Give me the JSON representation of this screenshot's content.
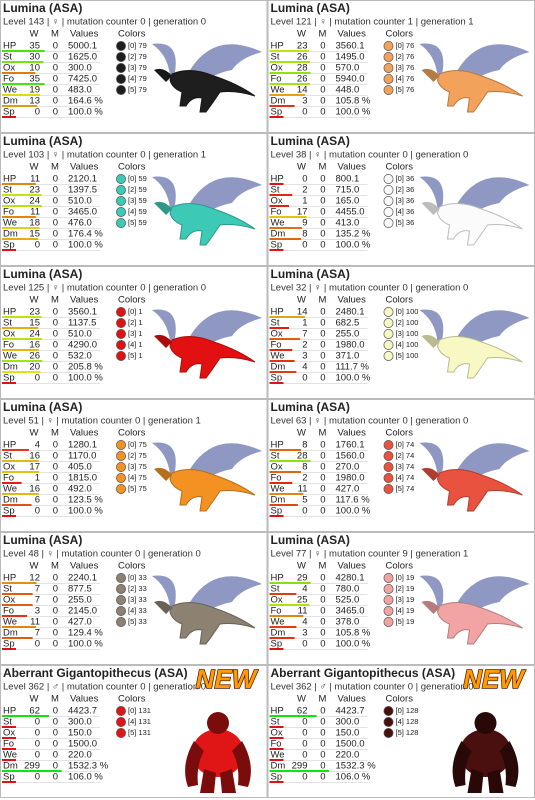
{
  "headers": {
    "w": "W",
    "m": "M",
    "values": "Values",
    "colors": "Colors"
  },
  "cards": [
    {
      "name": "Lumina (ASA)",
      "info": "Level 143 | ♀ | mutation counter 0 | generation 0",
      "stats": [
        {
          "label": "HP",
          "w": 35,
          "m": 0,
          "value": "5000.1"
        },
        {
          "label": "St",
          "w": 30,
          "m": 0,
          "value": "1625.0"
        },
        {
          "label": "Ox",
          "w": 10,
          "m": 0,
          "value": "300.0"
        },
        {
          "label": "Fo",
          "w": 35,
          "m": 0,
          "value": "7425.0"
        },
        {
          "label": "We",
          "w": 19,
          "m": 0,
          "value": "483.0"
        },
        {
          "label": "Dm",
          "w": 13,
          "m": 0,
          "value": "164.6 %"
        },
        {
          "label": "Sp",
          "w": 0,
          "m": 0,
          "value": "100.0 %"
        }
      ],
      "colors": [
        {
          "label": "[0] 79",
          "color": "#1e1e1e"
        },
        {
          "label": "[2] 79",
          "color": "#1e1e1e"
        },
        {
          "label": "[3] 79",
          "color": "#1e1e1e"
        },
        {
          "label": "[4] 79",
          "color": "#1e1e1e"
        },
        {
          "label": "[5] 79",
          "color": "#1e1e1e"
        }
      ]
    },
    {
      "name": "Lumina (ASA)",
      "info": "Level 121 | ♀ | mutation counter 1 | generation 1",
      "stats": [
        {
          "label": "HP",
          "w": 23,
          "m": 0,
          "value": "3560.1"
        },
        {
          "label": "St",
          "w": 26,
          "m": 0,
          "value": "1495.0"
        },
        {
          "label": "Ox",
          "w": 28,
          "m": 0,
          "value": "570.0"
        },
        {
          "label": "Fo",
          "w": 26,
          "m": 0,
          "value": "5940.0"
        },
        {
          "label": "We",
          "w": 14,
          "m": 0,
          "value": "448.0"
        },
        {
          "label": "Dm",
          "w": 3,
          "m": 0,
          "value": "105.8 %"
        },
        {
          "label": "Sp",
          "w": 0,
          "m": 0,
          "value": "100.0 %"
        }
      ],
      "colors": [
        {
          "label": "[0] 76",
          "color": "#f2a25a"
        },
        {
          "label": "[2] 76",
          "color": "#f2a25a"
        },
        {
          "label": "[3] 76",
          "color": "#f2a25a"
        },
        {
          "label": "[4] 76",
          "color": "#f2a25a"
        },
        {
          "label": "[5] 76",
          "color": "#f2a25a"
        }
      ]
    },
    {
      "name": "Lumina (ASA)",
      "info": "Level 103 | ♀ | mutation counter 0 | generation 1",
      "stats": [
        {
          "label": "HP",
          "w": 11,
          "m": 0,
          "value": "2120.1"
        },
        {
          "label": "St",
          "w": 23,
          "m": 0,
          "value": "1397.5"
        },
        {
          "label": "Ox",
          "w": 24,
          "m": 0,
          "value": "510.0"
        },
        {
          "label": "Fo",
          "w": 11,
          "m": 0,
          "value": "3465.0"
        },
        {
          "label": "We",
          "w": 18,
          "m": 0,
          "value": "476.0"
        },
        {
          "label": "Dm",
          "w": 15,
          "m": 0,
          "value": "176.4 %"
        },
        {
          "label": "Sp",
          "w": 0,
          "m": 0,
          "value": "100.0 %"
        }
      ],
      "colors": [
        {
          "label": "[0] 59",
          "color": "#3ccab6"
        },
        {
          "label": "[2] 59",
          "color": "#3ccab6"
        },
        {
          "label": "[3] 59",
          "color": "#3ccab6"
        },
        {
          "label": "[4] 59",
          "color": "#3ccab6"
        },
        {
          "label": "[5] 59",
          "color": "#3ccab6"
        }
      ]
    },
    {
      "name": "Lumina (ASA)",
      "info": "Level 38 | ♀ | mutation counter 0 | generation 0",
      "stats": [
        {
          "label": "HP",
          "w": 0,
          "m": 0,
          "value": "800.1"
        },
        {
          "label": "St",
          "w": 2,
          "m": 0,
          "value": "715.0"
        },
        {
          "label": "Ox",
          "w": 1,
          "m": 0,
          "value": "165.0"
        },
        {
          "label": "Fo",
          "w": 17,
          "m": 0,
          "value": "4455.0"
        },
        {
          "label": "We",
          "w": 9,
          "m": 0,
          "value": "413.0"
        },
        {
          "label": "Dm",
          "w": 8,
          "m": 0,
          "value": "135.2 %"
        },
        {
          "label": "Sp",
          "w": 0,
          "m": 0,
          "value": "100.0 %"
        }
      ],
      "colors": [
        {
          "label": "[0] 36",
          "color": "#fbfbfb"
        },
        {
          "label": "[2] 36",
          "color": "#fbfbfb"
        },
        {
          "label": "[3] 36",
          "color": "#fbfbfb"
        },
        {
          "label": "[4] 36",
          "color": "#fbfbfb"
        },
        {
          "label": "[5] 36",
          "color": "#fbfbfb"
        }
      ]
    },
    {
      "name": "Lumina (ASA)",
      "info": "Level 125 | ♀ | mutation counter 0 | generation 0",
      "stats": [
        {
          "label": "HP",
          "w": 23,
          "m": 0,
          "value": "3560.1"
        },
        {
          "label": "St",
          "w": 15,
          "m": 0,
          "value": "1137.5"
        },
        {
          "label": "Ox",
          "w": 24,
          "m": 0,
          "value": "510.0"
        },
        {
          "label": "Fo",
          "w": 16,
          "m": 0,
          "value": "4290.0"
        },
        {
          "label": "We",
          "w": 26,
          "m": 0,
          "value": "532.0"
        },
        {
          "label": "Dm",
          "w": 20,
          "m": 0,
          "value": "205.8 %"
        },
        {
          "label": "Sp",
          "w": 0,
          "m": 0,
          "value": "100.0 %"
        }
      ],
      "colors": [
        {
          "label": "[0] 1",
          "color": "#e21010"
        },
        {
          "label": "[2] 1",
          "color": "#e21010"
        },
        {
          "label": "[3] 1",
          "color": "#e21010"
        },
        {
          "label": "[4] 1",
          "color": "#e21010"
        },
        {
          "label": "[5] 1",
          "color": "#e21010"
        }
      ]
    },
    {
      "name": "Lumina (ASA)",
      "info": "Level 32 | ♀ | mutation counter 0 | generation 0",
      "stats": [
        {
          "label": "HP",
          "w": 14,
          "m": 0,
          "value": "2480.1"
        },
        {
          "label": "St",
          "w": 1,
          "m": 0,
          "value": "682.5"
        },
        {
          "label": "Ox",
          "w": 7,
          "m": 0,
          "value": "255.0"
        },
        {
          "label": "Fo",
          "w": 2,
          "m": 0,
          "value": "1980.0"
        },
        {
          "label": "We",
          "w": 3,
          "m": 0,
          "value": "371.0"
        },
        {
          "label": "Dm",
          "w": 4,
          "m": 0,
          "value": "111.7 %"
        },
        {
          "label": "Sp",
          "w": 0,
          "m": 0,
          "value": "100.0 %"
        }
      ],
      "colors": [
        {
          "label": "[0] 100",
          "color": "#f8f8c4"
        },
        {
          "label": "[2] 100",
          "color": "#f8f8c4"
        },
        {
          "label": "[3] 100",
          "color": "#f8f8c4"
        },
        {
          "label": "[4] 100",
          "color": "#f8f8c4"
        },
        {
          "label": "[5] 100",
          "color": "#f8f8c4"
        }
      ]
    },
    {
      "name": "Lumina (ASA)",
      "info": "Level 51 | ♀ | mutation counter 0 | generation 1",
      "stats": [
        {
          "label": "HP",
          "w": 4,
          "m": 0,
          "value": "1280.1"
        },
        {
          "label": "St",
          "w": 16,
          "m": 0,
          "value": "1170.0"
        },
        {
          "label": "Ox",
          "w": 17,
          "m": 0,
          "value": "405.0"
        },
        {
          "label": "Fo",
          "w": 1,
          "m": 0,
          "value": "1815.0"
        },
        {
          "label": "We",
          "w": 16,
          "m": 0,
          "value": "492.0"
        },
        {
          "label": "Dm",
          "w": 6,
          "m": 0,
          "value": "123.5 %"
        },
        {
          "label": "Sp",
          "w": 0,
          "m": 0,
          "value": "100.0 %"
        }
      ],
      "colors": [
        {
          "label": "[0] 75",
          "color": "#f39222"
        },
        {
          "label": "[2] 75",
          "color": "#f39222"
        },
        {
          "label": "[3] 75",
          "color": "#f39222"
        },
        {
          "label": "[4] 75",
          "color": "#f39222"
        },
        {
          "label": "[5] 75",
          "color": "#f39222"
        }
      ]
    },
    {
      "name": "Lumina (ASA)",
      "info": "Level 63 | ♀ | mutation counter 0 | generation 0",
      "stats": [
        {
          "label": "HP",
          "w": 8,
          "m": 0,
          "value": "1760.1"
        },
        {
          "label": "St",
          "w": 28,
          "m": 0,
          "value": "1560.0"
        },
        {
          "label": "Ox",
          "w": 8,
          "m": 0,
          "value": "270.0"
        },
        {
          "label": "Fo",
          "w": 2,
          "m": 0,
          "value": "1980.0"
        },
        {
          "label": "We",
          "w": 11,
          "m": 0,
          "value": "427.0"
        },
        {
          "label": "Dm",
          "w": 5,
          "m": 0,
          "value": "117.6 %"
        },
        {
          "label": "Sp",
          "w": 0,
          "m": 0,
          "value": "100.0 %"
        }
      ],
      "colors": [
        {
          "label": "[0] 74",
          "color": "#e9523e"
        },
        {
          "label": "[2] 74",
          "color": "#e9523e"
        },
        {
          "label": "[3] 74",
          "color": "#e9523e"
        },
        {
          "label": "[4] 74",
          "color": "#e9523e"
        },
        {
          "label": "[5] 74",
          "color": "#e9523e"
        }
      ]
    },
    {
      "name": "Lumina (ASA)",
      "info": "Level 48 | ♀ | mutation counter 0 | generation 0",
      "stats": [
        {
          "label": "HP",
          "w": 12,
          "m": 0,
          "value": "2240.1"
        },
        {
          "label": "St",
          "w": 7,
          "m": 0,
          "value": "877.5"
        },
        {
          "label": "Ox",
          "w": 7,
          "m": 0,
          "value": "255.0"
        },
        {
          "label": "Fo",
          "w": 3,
          "m": 0,
          "value": "2145.0"
        },
        {
          "label": "We",
          "w": 11,
          "m": 0,
          "value": "427.0"
        },
        {
          "label": "Dm",
          "w": 7,
          "m": 0,
          "value": "129.4 %"
        },
        {
          "label": "Sp",
          "w": 0,
          "m": 0,
          "value": "100.0 %"
        }
      ],
      "colors": [
        {
          "label": "[0] 33",
          "color": "#8d8272"
        },
        {
          "label": "[2] 33",
          "color": "#8d8272"
        },
        {
          "label": "[3] 33",
          "color": "#8d8272"
        },
        {
          "label": "[4] 33",
          "color": "#8d8272"
        },
        {
          "label": "[5] 33",
          "color": "#8d8272"
        }
      ]
    },
    {
      "name": "Lumina (ASA)",
      "info": "Level 77 | ♀ | mutation counter 9 | generation 1",
      "stats": [
        {
          "label": "HP",
          "w": 29,
          "m": 0,
          "value": "4280.1"
        },
        {
          "label": "St",
          "w": 4,
          "m": 0,
          "value": "780.0"
        },
        {
          "label": "Ox",
          "w": 25,
          "m": 0,
          "value": "525.0"
        },
        {
          "label": "Fo",
          "w": 11,
          "m": 0,
          "value": "3465.0"
        },
        {
          "label": "We",
          "w": 4,
          "m": 0,
          "value": "378.0"
        },
        {
          "label": "Dm",
          "w": 3,
          "m": 0,
          "value": "105.8 %"
        },
        {
          "label": "Sp",
          "w": 0,
          "m": 0,
          "value": "100.0 %"
        }
      ],
      "colors": [
        {
          "label": "[0] 19",
          "color": "#f2a4a4"
        },
        {
          "label": "[2] 19",
          "color": "#f2a4a4"
        },
        {
          "label": "[3] 19",
          "color": "#f2a4a4"
        },
        {
          "label": "[4] 19",
          "color": "#f2a4a4"
        },
        {
          "label": "[5] 19",
          "color": "#f2a4a4"
        }
      ]
    },
    {
      "name": "Aberrant Gigantopithecus (ASA)",
      "info": "Level 362 | ♂ | mutation counter 0 | generation 0",
      "badge": "NEW",
      "stats": [
        {
          "label": "HP",
          "w": 62,
          "m": 0,
          "value": "4423.7"
        },
        {
          "label": "St",
          "w": 0,
          "m": 0,
          "value": "300.0"
        },
        {
          "label": "Ox",
          "w": 0,
          "m": 0,
          "value": "150.0"
        },
        {
          "label": "Fo",
          "w": 0,
          "m": 0,
          "value": "1500.0"
        },
        {
          "label": "We",
          "w": 0,
          "m": 0,
          "value": "220.0"
        },
        {
          "label": "Dm",
          "w": 299,
          "m": 0,
          "value": "1532.3 %"
        },
        {
          "label": "Sp",
          "w": 0,
          "m": 0,
          "value": "106.0 %"
        }
      ],
      "colors": [
        {
          "label": "[0] 131",
          "color": "#e01515"
        },
        {
          "label": "[4] 131",
          "color": "#e01515"
        },
        {
          "label": "[5] 131",
          "color": "#e01515"
        }
      ]
    },
    {
      "name": "Aberrant Gigantopithecus (ASA)",
      "info": "Level 362 | ♂ | mutation counter 0 | generation 0",
      "badge": "NEW",
      "stats": [
        {
          "label": "HP",
          "w": 62,
          "m": 0,
          "value": "4423.7"
        },
        {
          "label": "St",
          "w": 0,
          "m": 0,
          "value": "300.0"
        },
        {
          "label": "Ox",
          "w": 0,
          "m": 0,
          "value": "150.0"
        },
        {
          "label": "Fo",
          "w": 0,
          "m": 0,
          "value": "1500.0"
        },
        {
          "label": "We",
          "w": 0,
          "m": 0,
          "value": "220.0"
        },
        {
          "label": "Dm",
          "w": 299,
          "m": 0,
          "value": "1532.3 %"
        },
        {
          "label": "Sp",
          "w": 0,
          "m": 0,
          "value": "106.0 %"
        }
      ],
      "colors": [
        {
          "label": "[0] 128",
          "color": "#4a0f0f"
        },
        {
          "label": "[4] 128",
          "color": "#4a0f0f"
        },
        {
          "label": "[5] 128",
          "color": "#4a0f0f"
        }
      ]
    }
  ]
}
